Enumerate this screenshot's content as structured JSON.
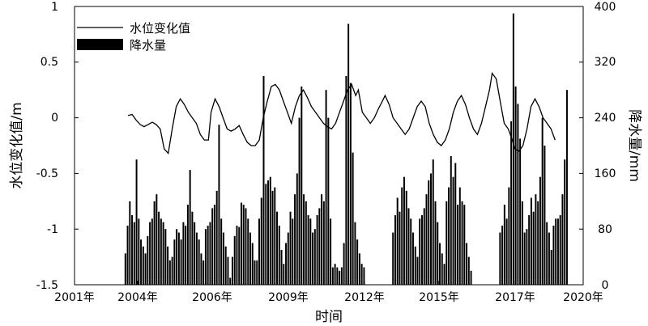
{
  "chart_data": {
    "type": "bar+line",
    "xlabel": "时间",
    "ylabel_left": "水位变化值/m",
    "ylabel_right": "降水量/mm",
    "x_ticks": [
      "2001年",
      "2004年",
      "2006年",
      "2009年",
      "2012年",
      "2015年",
      "2017年",
      "2020年"
    ],
    "y_left_ticks": [
      "-1.5",
      "-1",
      "-0.5",
      "0",
      "0.5",
      "1"
    ],
    "y_right_ticks": [
      "0",
      "80",
      "160",
      "240",
      "320",
      "400"
    ],
    "ylim_left": [
      -1.5,
      1
    ],
    "ylim_right": [
      0,
      400
    ],
    "xlim_years": [
      2001.0,
      2020.0
    ],
    "legend": {
      "position": "top-left",
      "line_label": "水位变化值",
      "bar_label": "降水量"
    },
    "precipitation": {
      "name": "降水量",
      "start_year": 2002.9,
      "step_years": 0.0833,
      "values": [
        45,
        85,
        120,
        100,
        90,
        180,
        95,
        65,
        55,
        45,
        70,
        90,
        95,
        120,
        130,
        105,
        95,
        90,
        80,
        55,
        35,
        40,
        65,
        80,
        75,
        65,
        90,
        85,
        115,
        165,
        105,
        90,
        75,
        65,
        45,
        35,
        80,
        85,
        90,
        110,
        115,
        135,
        230,
        95,
        75,
        55,
        40,
        10,
        40,
        70,
        85,
        83,
        118,
        115,
        110,
        95,
        75,
        60,
        35,
        35,
        95,
        125,
        300,
        145,
        150,
        155,
        135,
        140,
        105,
        85,
        50,
        30,
        60,
        75,
        105,
        95,
        130,
        160,
        240,
        285,
        130,
        120,
        100,
        95,
        75,
        80,
        100,
        110,
        130,
        120,
        280,
        240,
        95,
        25,
        30,
        25,
        20,
        25,
        60,
        300,
        375,
        290,
        190,
        90,
        65,
        45,
        30,
        25,
        0,
        0,
        0,
        0,
        0,
        0,
        0,
        0,
        0,
        0,
        0,
        0,
        75,
        100,
        125,
        105,
        140,
        155,
        135,
        110,
        95,
        75,
        55,
        40,
        95,
        100,
        110,
        130,
        150,
        160,
        180,
        120,
        90,
        60,
        45,
        30,
        120,
        140,
        185,
        155,
        175,
        115,
        140,
        120,
        115,
        60,
        40,
        20,
        0,
        0,
        0,
        0,
        0,
        0,
        0,
        0,
        0,
        0,
        0,
        0,
        75,
        85,
        115,
        95,
        140,
        235,
        390,
        285,
        260,
        210,
        120,
        75,
        80,
        100,
        125,
        105,
        130,
        120,
        155,
        240,
        200,
        90,
        75,
        50,
        85,
        95,
        95,
        100,
        130,
        180,
        280
      ]
    },
    "water_level": {
      "name": "水位变化值",
      "points": [
        [
          2003.0,
          0.02
        ],
        [
          2003.15,
          0.03
        ],
        [
          2003.3,
          -0.02
        ],
        [
          2003.45,
          -0.06
        ],
        [
          2003.6,
          -0.08
        ],
        [
          2003.75,
          -0.06
        ],
        [
          2003.9,
          -0.04
        ],
        [
          2004.05,
          -0.06
        ],
        [
          2004.2,
          -0.1
        ],
        [
          2004.35,
          -0.28
        ],
        [
          2004.5,
          -0.32
        ],
        [
          2004.65,
          -0.1
        ],
        [
          2004.8,
          0.1
        ],
        [
          2004.95,
          0.17
        ],
        [
          2005.1,
          0.12
        ],
        [
          2005.25,
          0.05
        ],
        [
          2005.4,
          0.0
        ],
        [
          2005.55,
          -0.05
        ],
        [
          2005.7,
          -0.15
        ],
        [
          2005.85,
          -0.2
        ],
        [
          2006.0,
          -0.2
        ],
        [
          2006.1,
          0.05
        ],
        [
          2006.25,
          0.17
        ],
        [
          2006.4,
          0.1
        ],
        [
          2006.55,
          0.0
        ],
        [
          2006.7,
          -0.1
        ],
        [
          2006.85,
          -0.12
        ],
        [
          2007.0,
          -0.1
        ],
        [
          2007.15,
          -0.07
        ],
        [
          2007.3,
          -0.15
        ],
        [
          2007.45,
          -0.22
        ],
        [
          2007.6,
          -0.25
        ],
        [
          2007.75,
          -0.25
        ],
        [
          2007.9,
          -0.2
        ],
        [
          2008.05,
          0.0
        ],
        [
          2008.2,
          0.15
        ],
        [
          2008.35,
          0.28
        ],
        [
          2008.5,
          0.3
        ],
        [
          2008.65,
          0.25
        ],
        [
          2008.8,
          0.15
        ],
        [
          2008.95,
          0.05
        ],
        [
          2009.1,
          -0.05
        ],
        [
          2009.25,
          0.1
        ],
        [
          2009.4,
          0.2
        ],
        [
          2009.55,
          0.25
        ],
        [
          2009.7,
          0.18
        ],
        [
          2009.85,
          0.1
        ],
        [
          2010.0,
          0.05
        ],
        [
          2010.15,
          0.0
        ],
        [
          2010.3,
          -0.05
        ],
        [
          2010.45,
          -0.08
        ],
        [
          2010.6,
          -0.1
        ],
        [
          2010.75,
          -0.05
        ],
        [
          2010.9,
          0.05
        ],
        [
          2011.05,
          0.15
        ],
        [
          2011.2,
          0.25
        ],
        [
          2011.35,
          0.3
        ],
        [
          2011.5,
          0.2
        ],
        [
          2011.6,
          0.25
        ],
        [
          2011.75,
          0.05
        ],
        [
          2011.9,
          0.0
        ],
        [
          2012.05,
          -0.05
        ],
        [
          2012.2,
          0.0
        ],
        [
          2012.35,
          0.08
        ],
        [
          2012.5,
          0.15
        ],
        [
          2012.6,
          0.2
        ],
        [
          2012.75,
          0.12
        ],
        [
          2012.9,
          0.0
        ],
        [
          2013.05,
          -0.05
        ],
        [
          2013.2,
          -0.1
        ],
        [
          2013.35,
          -0.15
        ],
        [
          2013.5,
          -0.1
        ],
        [
          2013.65,
          0.0
        ],
        [
          2013.8,
          0.1
        ],
        [
          2013.95,
          0.15
        ],
        [
          2014.1,
          0.1
        ],
        [
          2014.25,
          -0.05
        ],
        [
          2014.4,
          -0.15
        ],
        [
          2014.55,
          -0.22
        ],
        [
          2014.7,
          -0.25
        ],
        [
          2014.85,
          -0.2
        ],
        [
          2015.0,
          -0.1
        ],
        [
          2015.15,
          0.05
        ],
        [
          2015.3,
          0.15
        ],
        [
          2015.45,
          0.2
        ],
        [
          2015.6,
          0.12
        ],
        [
          2015.75,
          0.0
        ],
        [
          2015.9,
          -0.1
        ],
        [
          2016.05,
          -0.15
        ],
        [
          2016.2,
          -0.05
        ],
        [
          2016.35,
          0.1
        ],
        [
          2016.5,
          0.25
        ],
        [
          2016.6,
          0.4
        ],
        [
          2016.75,
          0.35
        ],
        [
          2016.9,
          0.15
        ],
        [
          2017.05,
          -0.05
        ],
        [
          2017.2,
          -0.1
        ],
        [
          2017.35,
          -0.2
        ],
        [
          2017.45,
          -0.28
        ],
        [
          2017.6,
          -0.3
        ],
        [
          2017.75,
          -0.25
        ],
        [
          2017.9,
          -0.1
        ],
        [
          2018.05,
          0.1
        ],
        [
          2018.2,
          0.17
        ],
        [
          2018.35,
          0.1
        ],
        [
          2018.5,
          0.0
        ],
        [
          2018.65,
          -0.05
        ],
        [
          2018.8,
          -0.1
        ],
        [
          2018.95,
          -0.2
        ]
      ]
    }
  }
}
